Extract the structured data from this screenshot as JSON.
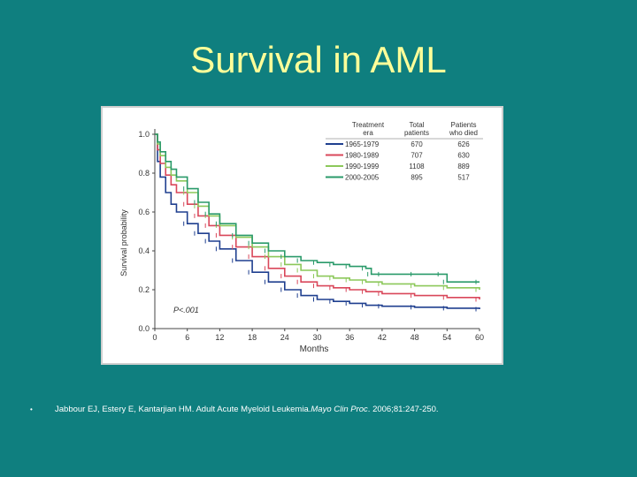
{
  "slide": {
    "title": "Survival in AML",
    "citation": {
      "bullet": "•",
      "authors": "Jabbour EJ, Estery E, Kantarjian HM. Adult Acute Myeloid Leukemia.",
      "journal": "Mayo Clin Proc",
      "details": ". 2006;81:247-250."
    },
    "colors": {
      "background": "#0f7f7f",
      "title": "#ffff99",
      "text": "#ffffff"
    }
  },
  "chart_data": {
    "type": "line",
    "xlabel": "Months",
    "ylabel": "Survival probability",
    "xlim": [
      0,
      60
    ],
    "ylim": [
      0,
      1.0
    ],
    "xticks": [
      0,
      6,
      12,
      18,
      24,
      30,
      36,
      42,
      48,
      54,
      60
    ],
    "yticks": [
      "0.0",
      "0.2",
      "0.4",
      "0.6",
      "0.8",
      "1.0"
    ],
    "annotation": "P<.001",
    "legend": {
      "placement": "top-right",
      "headers": [
        "Treatment era",
        "Total patients",
        "Patients who died"
      ]
    },
    "series": [
      {
        "name": "1965-1979",
        "total": "670",
        "died": "626",
        "color": "#1f3f8f",
        "x": [
          0,
          0.5,
          1,
          2,
          3,
          4,
          6,
          8,
          10,
          12,
          15,
          18,
          21,
          24,
          27,
          30,
          33,
          36,
          39,
          42,
          48,
          54,
          60
        ],
        "y": [
          1.0,
          0.86,
          0.78,
          0.7,
          0.64,
          0.6,
          0.54,
          0.49,
          0.45,
          0.41,
          0.35,
          0.29,
          0.24,
          0.2,
          0.17,
          0.15,
          0.14,
          0.13,
          0.12,
          0.115,
          0.11,
          0.105,
          0.1
        ]
      },
      {
        "name": "1980-1989",
        "total": "707",
        "died": "630",
        "color": "#d9475a",
        "x": [
          0,
          0.5,
          1,
          2,
          3,
          4,
          6,
          8,
          10,
          12,
          15,
          18,
          21,
          24,
          27,
          30,
          33,
          36,
          39,
          42,
          48,
          54,
          60
        ],
        "y": [
          1.0,
          0.92,
          0.85,
          0.79,
          0.74,
          0.7,
          0.64,
          0.58,
          0.53,
          0.48,
          0.42,
          0.37,
          0.31,
          0.27,
          0.24,
          0.22,
          0.21,
          0.2,
          0.19,
          0.18,
          0.17,
          0.16,
          0.15
        ]
      },
      {
        "name": "1990-1999",
        "total": "1108",
        "died": "889",
        "color": "#8cc85a",
        "x": [
          0,
          0.5,
          1,
          2,
          3,
          4,
          6,
          8,
          10,
          12,
          15,
          18,
          21,
          24,
          27,
          30,
          33,
          36,
          39,
          42,
          48,
          54,
          60
        ],
        "y": [
          1.0,
          0.95,
          0.89,
          0.83,
          0.79,
          0.76,
          0.7,
          0.63,
          0.58,
          0.53,
          0.47,
          0.42,
          0.37,
          0.33,
          0.3,
          0.27,
          0.26,
          0.25,
          0.24,
          0.23,
          0.22,
          0.21,
          0.2
        ]
      },
      {
        "name": "2000-2005",
        "total": "895",
        "died": "517",
        "color": "#2a9a6a",
        "x": [
          0,
          0.5,
          1,
          2,
          3,
          4,
          6,
          8,
          10,
          12,
          15,
          18,
          21,
          24,
          27,
          30,
          33,
          36,
          39,
          40,
          42,
          48,
          53,
          54,
          60
        ],
        "y": [
          1.0,
          0.96,
          0.91,
          0.86,
          0.82,
          0.78,
          0.72,
          0.65,
          0.59,
          0.54,
          0.48,
          0.44,
          0.4,
          0.37,
          0.35,
          0.34,
          0.33,
          0.32,
          0.31,
          0.28,
          0.28,
          0.28,
          0.28,
          0.24,
          0.24
        ]
      }
    ]
  }
}
